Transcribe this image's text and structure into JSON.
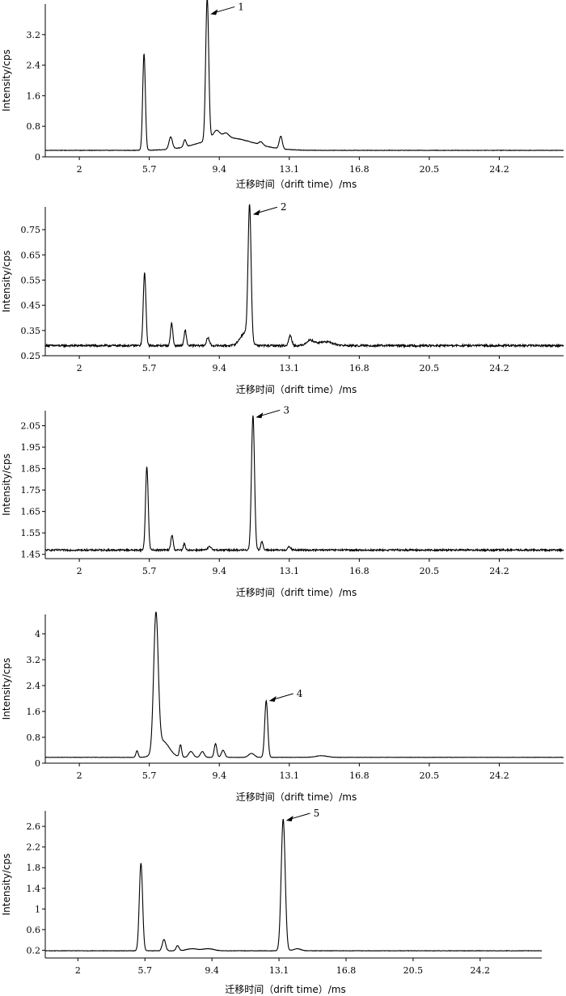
{
  "chart_data": [
    {
      "type": "line",
      "title": "",
      "xlabel": "迁移时间（drift time）/ms",
      "ylabel": "Intensity/cps",
      "xlim": [
        0.2,
        27.6
      ],
      "ylim": [
        0,
        4.0
      ],
      "x_ticks": [
        2,
        5.7,
        9.4,
        13.1,
        16.8,
        20.5,
        24.2
      ],
      "x_tick_labels": [
        "2",
        "5.7",
        "9.4",
        "13.1",
        "16.8",
        "20.5",
        "24.2"
      ],
      "y_ticks": [
        0,
        0.8,
        1.6,
        2.4,
        3.2
      ],
      "y_tick_labels": [
        "0",
        "0.8",
        "1.6",
        "2.4",
        "3.2"
      ],
      "baseline": 0.17,
      "noise": 0.006,
      "peaks": [
        {
          "x": 5.42,
          "height": 2.53,
          "width": 0.07
        },
        {
          "x": 6.83,
          "height": 0.32,
          "width": 0.09
        },
        {
          "x": 7.58,
          "height": 0.18,
          "width": 0.07
        },
        {
          "x": 8.76,
          "height": 3.75,
          "width": 0.08
        },
        {
          "x": 9.25,
          "height": 0.22,
          "width": 0.18
        },
        {
          "x": 9.75,
          "height": 0.12,
          "width": 0.15
        },
        {
          "x": 9.8,
          "height": 0.33,
          "width": 1.4
        },
        {
          "x": 11.6,
          "height": 0.08,
          "width": 0.1
        },
        {
          "x": 12.65,
          "height": 0.33,
          "width": 0.08
        }
      ],
      "annotation": {
        "label": "1",
        "x": 8.8,
        "y": 3.8
      }
    },
    {
      "type": "line",
      "title": "",
      "xlabel": "迁移时间（drift time）/ms",
      "ylabel": "Intensity/cps",
      "xlim": [
        0.2,
        27.6
      ],
      "ylim": [
        0.25,
        0.84
      ],
      "x_ticks": [
        2,
        5.7,
        9.4,
        13.1,
        16.8,
        20.5,
        24.2
      ],
      "x_tick_labels": [
        "2",
        "5.7",
        "9.4",
        "13.1",
        "16.8",
        "20.5",
        "24.2"
      ],
      "y_ticks": [
        0.25,
        0.35,
        0.45,
        0.55,
        0.65,
        0.75
      ],
      "y_tick_labels": [
        "0.25",
        "0.35",
        "0.45",
        "0.55",
        "0.65",
        "0.75"
      ],
      "baseline": 0.29,
      "noise": 0.004,
      "peaks": [
        {
          "x": 5.45,
          "height": 0.29,
          "width": 0.07
        },
        {
          "x": 6.88,
          "height": 0.09,
          "width": 0.06
        },
        {
          "x": 7.6,
          "height": 0.06,
          "width": 0.06
        },
        {
          "x": 8.8,
          "height": 0.03,
          "width": 0.08
        },
        {
          "x": 11.0,
          "height": 0.53,
          "width": 0.08
        },
        {
          "x": 10.75,
          "height": 0.05,
          "width": 0.25
        },
        {
          "x": 13.15,
          "height": 0.04,
          "width": 0.08
        },
        {
          "x": 14.2,
          "height": 0.02,
          "width": 0.2
        },
        {
          "x": 15.0,
          "height": 0.015,
          "width": 0.4
        }
      ],
      "annotation": {
        "label": "2",
        "x": 11.05,
        "y": 0.82
      }
    },
    {
      "type": "line",
      "title": "",
      "xlabel": "迁移时间（drift time）/ms",
      "ylabel": "Intensity/cps",
      "xlim": [
        0.2,
        27.6
      ],
      "ylim": [
        1.43,
        2.12
      ],
      "x_ticks": [
        2,
        5.7,
        9.4,
        13.1,
        16.8,
        20.5,
        24.2
      ],
      "x_tick_labels": [
        "2",
        "5.7",
        "9.4",
        "13.1",
        "16.8",
        "20.5",
        "24.2"
      ],
      "y_ticks": [
        1.45,
        1.55,
        1.65,
        1.75,
        1.85,
        1.95,
        2.05
      ],
      "y_tick_labels": [
        "1.45",
        "1.55",
        "1.65",
        "1.75",
        "1.85",
        "1.95",
        "2.05"
      ],
      "baseline": 1.47,
      "noise": 0.004,
      "peaks": [
        {
          "x": 5.57,
          "height": 0.39,
          "width": 0.07
        },
        {
          "x": 6.9,
          "height": 0.07,
          "width": 0.06
        },
        {
          "x": 7.55,
          "height": 0.03,
          "width": 0.05
        },
        {
          "x": 8.9,
          "height": 0.015,
          "width": 0.1
        },
        {
          "x": 11.18,
          "height": 0.63,
          "width": 0.08
        },
        {
          "x": 11.65,
          "height": 0.04,
          "width": 0.06
        },
        {
          "x": 13.1,
          "height": 0.015,
          "width": 0.08
        }
      ],
      "annotation": {
        "label": "3",
        "x": 11.2,
        "y": 2.1
      }
    },
    {
      "type": "line",
      "title": "",
      "xlabel": "迁移时间（drift time）/ms",
      "ylabel": "Intensity/cps",
      "xlim": [
        0.2,
        27.6
      ],
      "ylim": [
        0,
        4.6
      ],
      "x_ticks": [
        2,
        5.7,
        9.4,
        13.1,
        16.8,
        20.5,
        24.2
      ],
      "x_tick_labels": [
        "2",
        "5.7",
        "9.4",
        "13.1",
        "16.8",
        "20.5",
        "24.2"
      ],
      "y_ticks": [
        0,
        0.8,
        1.6,
        2.4,
        3.2,
        4
      ],
      "y_tick_labels": [
        "0",
        "0.8",
        "1.6",
        "2.4",
        "3.2",
        "4"
      ],
      "baseline": 0.18,
      "noise": 0.005,
      "peaks": [
        {
          "x": 5.05,
          "height": 0.2,
          "width": 0.06
        },
        {
          "x": 6.05,
          "height": 4.2,
          "width": 0.12
        },
        {
          "x": 6.4,
          "height": 0.5,
          "width": 0.35
        },
        {
          "x": 7.35,
          "height": 0.38,
          "width": 0.06
        },
        {
          "x": 7.9,
          "height": 0.18,
          "width": 0.12
        },
        {
          "x": 8.5,
          "height": 0.18,
          "width": 0.1
        },
        {
          "x": 9.2,
          "height": 0.42,
          "width": 0.07
        },
        {
          "x": 9.6,
          "height": 0.22,
          "width": 0.09
        },
        {
          "x": 11.1,
          "height": 0.12,
          "width": 0.15
        },
        {
          "x": 11.88,
          "height": 1.75,
          "width": 0.08
        },
        {
          "x": 14.8,
          "height": 0.05,
          "width": 0.3
        }
      ],
      "annotation": {
        "label": "4",
        "x": 11.9,
        "y": 2.0
      }
    },
    {
      "type": "line",
      "title": "",
      "xlabel": "迁移时间（drift time）/ms",
      "ylabel": "Intensity/cps",
      "xlim": [
        0.2,
        27.6
      ],
      "ylim": [
        0.05,
        2.9
      ],
      "x_ticks": [
        2,
        5.7,
        9.4,
        13.1,
        16.8,
        20.5,
        24.2
      ],
      "x_tick_labels": [
        "2",
        "5.7",
        "9.4",
        "13.1",
        "16.8",
        "20.5",
        "24.2"
      ],
      "y_ticks": [
        0.2,
        0.6,
        1,
        1.4,
        1.8,
        2.2,
        2.6
      ],
      "y_tick_labels": [
        "0.2",
        "0.6",
        "1",
        "1.4",
        "1.8",
        "2.2",
        "2.6"
      ],
      "baseline": 0.19,
      "noise": 0.004,
      "peaks": [
        {
          "x": 5.48,
          "height": 1.7,
          "width": 0.09
        },
        {
          "x": 6.75,
          "height": 0.22,
          "width": 0.09
        },
        {
          "x": 7.5,
          "height": 0.1,
          "width": 0.08
        },
        {
          "x": 8.3,
          "height": 0.04,
          "width": 0.3
        },
        {
          "x": 9.2,
          "height": 0.04,
          "width": 0.3
        },
        {
          "x": 13.33,
          "height": 2.55,
          "width": 0.11
        },
        {
          "x": 14.1,
          "height": 0.04,
          "width": 0.2
        }
      ],
      "annotation": {
        "label": "5",
        "x": 13.35,
        "y": 2.76
      }
    }
  ]
}
